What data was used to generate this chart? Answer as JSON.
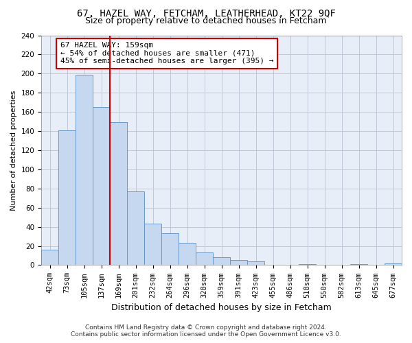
{
  "title1": "67, HAZEL WAY, FETCHAM, LEATHERHEAD, KT22 9QF",
  "title2": "Size of property relative to detached houses in Fetcham",
  "xlabel": "Distribution of detached houses by size in Fetcham",
  "ylabel": "Number of detached properties",
  "bar_labels": [
    "42sqm",
    "73sqm",
    "105sqm",
    "137sqm",
    "169sqm",
    "201sqm",
    "232sqm",
    "264sqm",
    "296sqm",
    "328sqm",
    "359sqm",
    "391sqm",
    "423sqm",
    "455sqm",
    "486sqm",
    "518sqm",
    "550sqm",
    "582sqm",
    "613sqm",
    "645sqm",
    "677sqm"
  ],
  "bar_heights": [
    16,
    141,
    199,
    165,
    149,
    77,
    43,
    33,
    23,
    13,
    8,
    5,
    4,
    0,
    0,
    1,
    0,
    0,
    1,
    0,
    2
  ],
  "bar_color": "#c5d8f0",
  "bar_edge_color": "#6699cc",
  "property_line_x": 3.5,
  "annotation_line1": "67 HAZEL WAY: 159sqm",
  "annotation_line2": "← 54% of detached houses are smaller (471)",
  "annotation_line3": "45% of semi-detached houses are larger (395) →",
  "vline_color": "#cc0000",
  "annotation_box_edge": "#cc0000",
  "ylim": [
    0,
    240
  ],
  "yticks": [
    0,
    20,
    40,
    60,
    80,
    100,
    120,
    140,
    160,
    180,
    200,
    220,
    240
  ],
  "footer_line1": "Contains HM Land Registry data © Crown copyright and database right 2024.",
  "footer_line2": "Contains public sector information licensed under the Open Government Licence v3.0.",
  "background_color": "#e8eef8",
  "grid_color": "#c0c8d8",
  "title1_fontsize": 10,
  "title2_fontsize": 9,
  "ylabel_fontsize": 8,
  "xlabel_fontsize": 9,
  "tick_fontsize": 7.5,
  "footer_fontsize": 6.5
}
